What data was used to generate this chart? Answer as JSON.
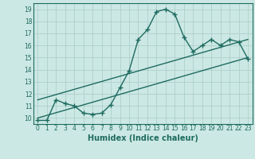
{
  "title": "",
  "xlabel": "Humidex (Indice chaleur)",
  "ylabel": "",
  "bg_color": "#cce8e4",
  "grid_color": "#aecfca",
  "line_color": "#1e6b60",
  "xlim": [
    -0.5,
    23.5
  ],
  "ylim": [
    9.5,
    19.5
  ],
  "xticks": [
    0,
    1,
    2,
    3,
    4,
    5,
    6,
    7,
    8,
    9,
    10,
    11,
    12,
    13,
    14,
    15,
    16,
    17,
    18,
    19,
    20,
    21,
    22,
    23
  ],
  "yticks": [
    10,
    11,
    12,
    13,
    14,
    15,
    16,
    17,
    18,
    19
  ],
  "curve1_x": [
    0,
    1,
    2,
    3,
    4,
    5,
    6,
    7,
    8,
    9,
    10,
    11,
    12,
    13,
    14,
    15,
    16,
    17,
    18,
    19,
    20,
    21,
    22,
    23
  ],
  "curve1_y": [
    9.8,
    9.8,
    11.5,
    11.2,
    11.0,
    10.4,
    10.3,
    10.4,
    11.1,
    12.5,
    13.9,
    16.5,
    17.3,
    18.8,
    19.0,
    18.6,
    16.7,
    15.5,
    16.0,
    16.5,
    16.0,
    16.5,
    16.3,
    14.9
  ],
  "curve2_x": [
    0,
    23
  ],
  "curve2_y": [
    10.0,
    15.0
  ],
  "curve3_x": [
    0,
    23
  ],
  "curve3_y": [
    11.5,
    16.5
  ],
  "marker": "+",
  "markersize": 4,
  "linewidth": 1.0,
  "tick_fontsize": 5.5,
  "xlabel_fontsize": 7
}
